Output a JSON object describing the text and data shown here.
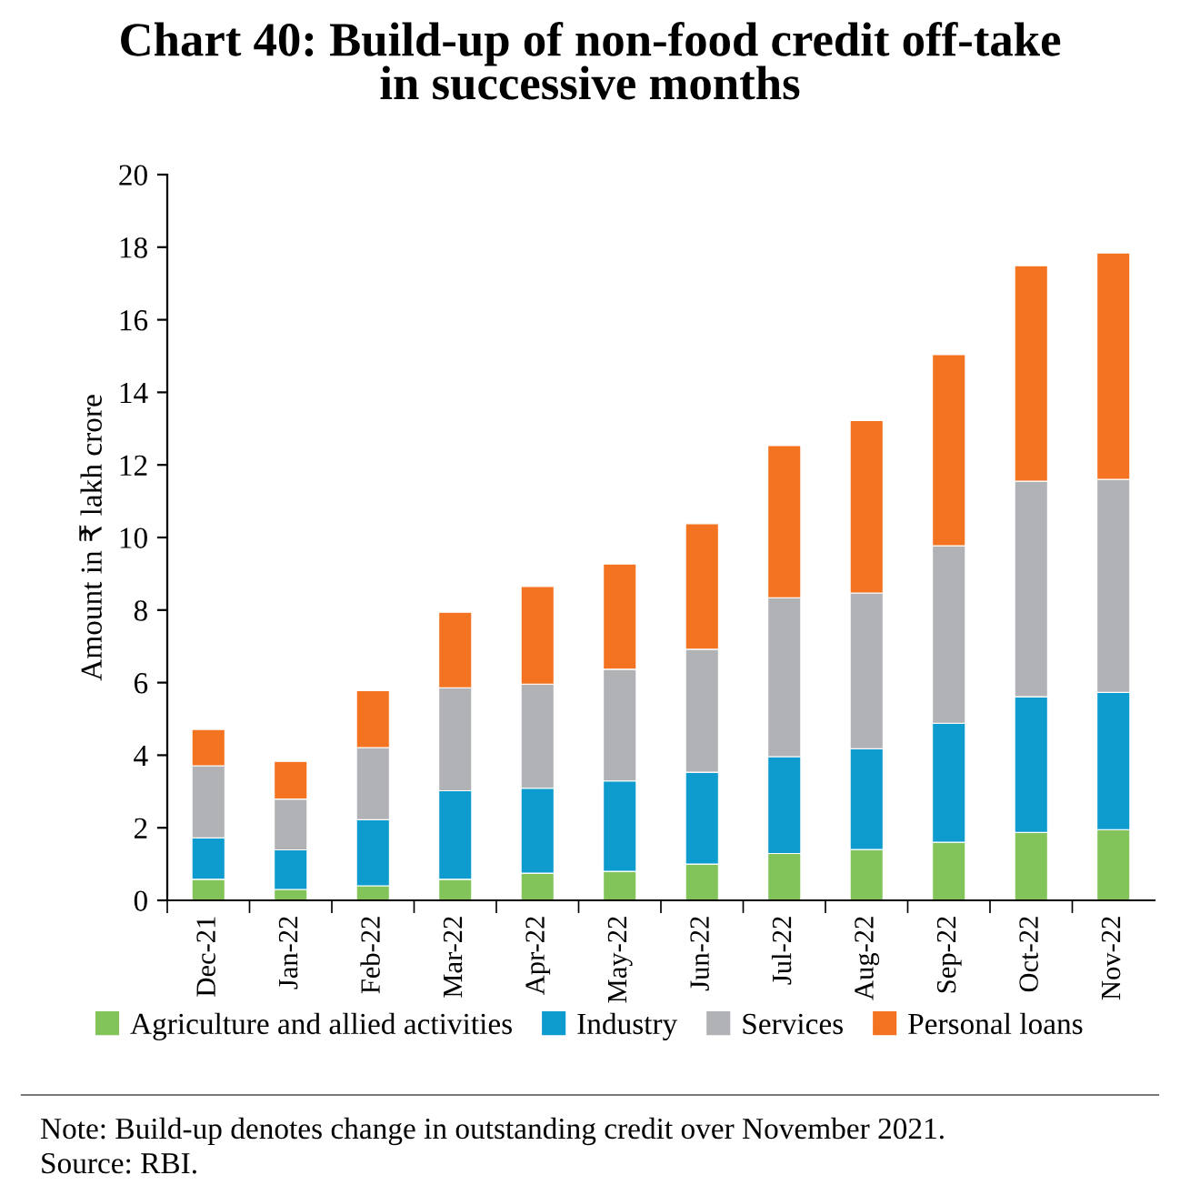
{
  "chart_data": {
    "type": "bar",
    "title": "Chart 40: Build-up of non-food credit off-take\nin successive months",
    "ylabel": "Amount in ₹ lakh crore",
    "categories": [
      "Dec-21",
      "Jan-22",
      "Feb-22",
      "Mar-22",
      "Apr-22",
      "May-22",
      "Jun-22",
      "Jul-22",
      "Aug-22",
      "Sep-22",
      "Oct-22",
      "Nov-22"
    ],
    "stacked": true,
    "series": [
      {
        "name": "Agriculture and allied activities",
        "color": "#82c45a",
        "values": [
          0.58,
          0.3,
          0.4,
          0.58,
          0.75,
          0.8,
          1.0,
          1.29,
          1.4,
          1.6,
          1.87,
          1.95
        ]
      },
      {
        "name": "Industry",
        "color": "#0e9bce",
        "values": [
          1.14,
          1.09,
          1.82,
          2.44,
          2.34,
          2.49,
          2.53,
          2.67,
          2.78,
          3.28,
          3.74,
          3.78
        ]
      },
      {
        "name": "Services",
        "color": "#b1b2b5",
        "values": [
          1.99,
          1.4,
          1.99,
          2.84,
          2.87,
          3.08,
          3.39,
          4.38,
          4.29,
          4.89,
          5.94,
          5.87
        ]
      },
      {
        "name": "Personal loans",
        "color": "#f37321",
        "values": [
          1.0,
          1.04,
          1.57,
          2.08,
          2.69,
          2.9,
          3.46,
          4.19,
          4.75,
          5.27,
          5.94,
          6.24
        ]
      }
    ],
    "ylim": [
      0,
      20
    ],
    "yticks": [
      0,
      2,
      4,
      6,
      8,
      10,
      12,
      14,
      16,
      18,
      20
    ],
    "grid": false,
    "legend": "bottom",
    "annotations": [
      "Note: Build-up denotes change in outstanding credit over November 2021.",
      "Source: RBI."
    ]
  }
}
